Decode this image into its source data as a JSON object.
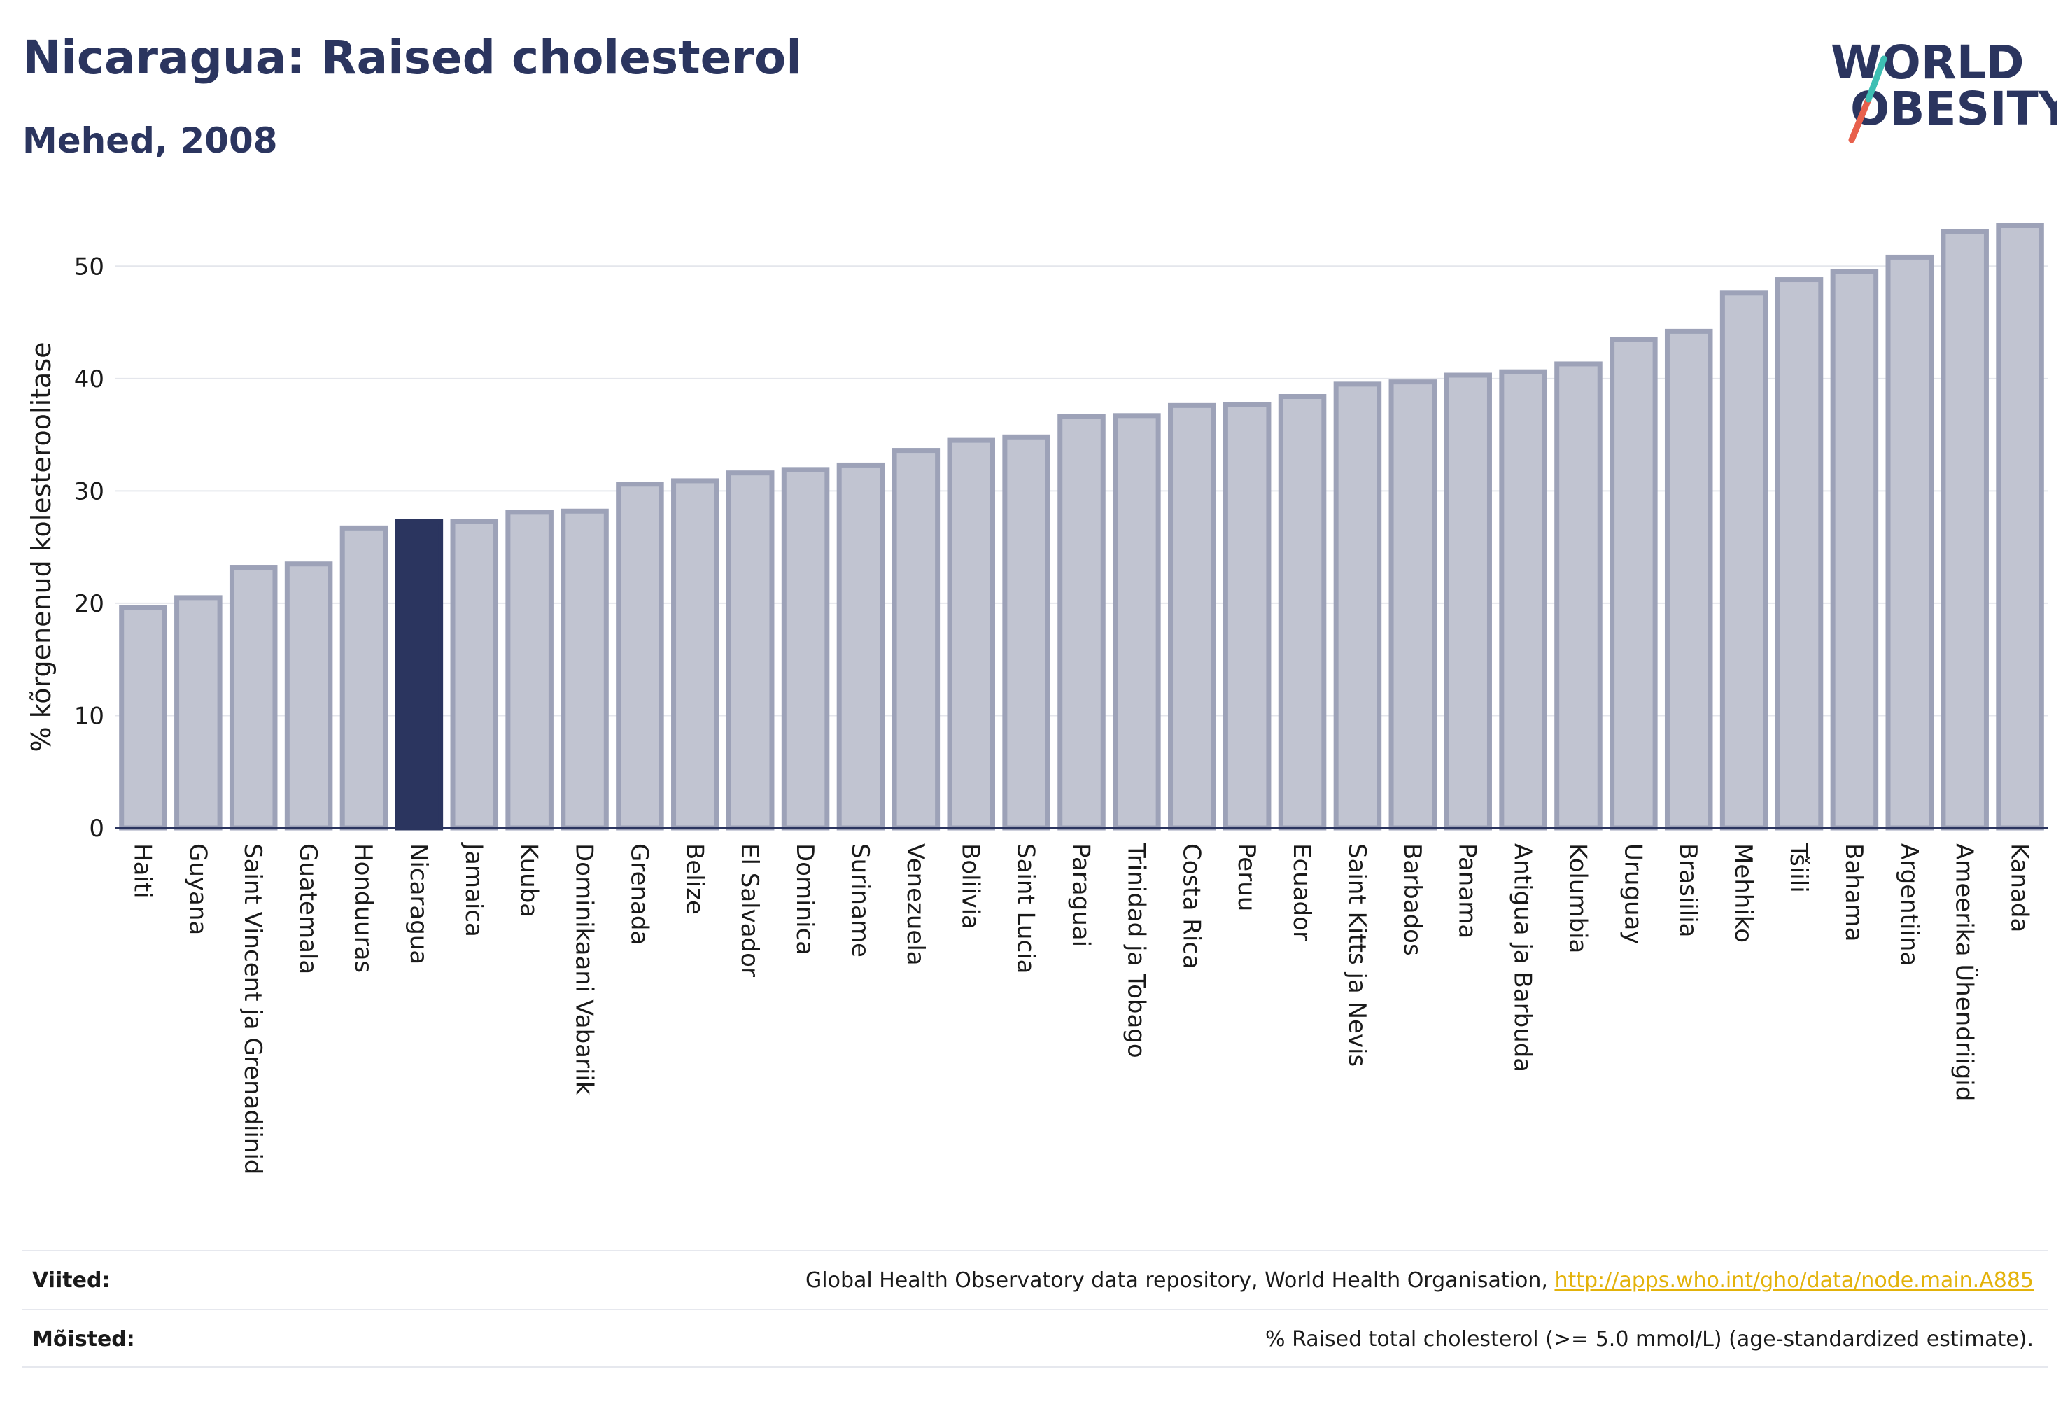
{
  "header": {
    "title": "Nicaragua: Raised cholesterol",
    "subtitle": "Mehed, 2008"
  },
  "logo": {
    "line1": "WORLD",
    "line2": "OBESITY"
  },
  "colors": {
    "bar_default": "#c1c4d1",
    "bar_border": "#9da2b8",
    "bar_highlight": "#2b355f",
    "title": "#2b355f",
    "logo_slash_red": "#e8604c",
    "logo_slash_teal": "#3ebfb3",
    "link": "#e3b20a"
  },
  "chart_data": {
    "type": "bar",
    "title": "",
    "xlabel": "",
    "ylabel": "% kõrgenenud kolesteroolitase",
    "ylim": [
      0,
      55
    ],
    "yticks": [
      0,
      10,
      20,
      30,
      40,
      50
    ],
    "grid": true,
    "highlight": "Nicaragua",
    "categories": [
      "Haiti",
      "Guyana",
      "Saint Vincent ja Grenadiinid",
      "Guatemala",
      "Honduuras",
      "Nicaragua",
      "Jamaica",
      "Kuuba",
      "Dominikaani Vabariik",
      "Grenada",
      "Belize",
      "El Salvador",
      "Dominica",
      "Suriname",
      "Venezuela",
      "Boliivia",
      "Saint Lucia",
      "Paraguai",
      "Trinidad ja Tobago",
      "Costa Rica",
      "Peruu",
      "Ecuador",
      "Saint Kitts ja Nevis",
      "Barbados",
      "Panama",
      "Antigua ja Barbuda",
      "Kolumbia",
      "Uruguay",
      "Brasiilia",
      "Mehhiko",
      "Tšiili",
      "Bahama",
      "Argentiina",
      "Ameerika Ühendriigid",
      "Kanada"
    ],
    "values": [
      19.6,
      20.5,
      23.2,
      23.5,
      26.7,
      27.3,
      27.3,
      28.1,
      28.2,
      30.6,
      30.9,
      31.6,
      31.9,
      32.3,
      33.6,
      34.5,
      34.8,
      36.6,
      36.7,
      37.6,
      37.7,
      38.4,
      39.5,
      39.7,
      40.3,
      40.6,
      41.3,
      43.5,
      44.2,
      47.6,
      48.8,
      49.5,
      50.8,
      53.1,
      53.6
    ]
  },
  "footer": {
    "references_label": "Viited:",
    "references_text": "Global Health Observatory data repository, World Health Organisation, ",
    "references_link": "http://apps.who.int/gho/data/node.main.A885",
    "definitions_label": "Mõisted:",
    "definitions_text": "% Raised total cholesterol (>= 5.0 mmol/L) (age-standardized estimate)."
  }
}
